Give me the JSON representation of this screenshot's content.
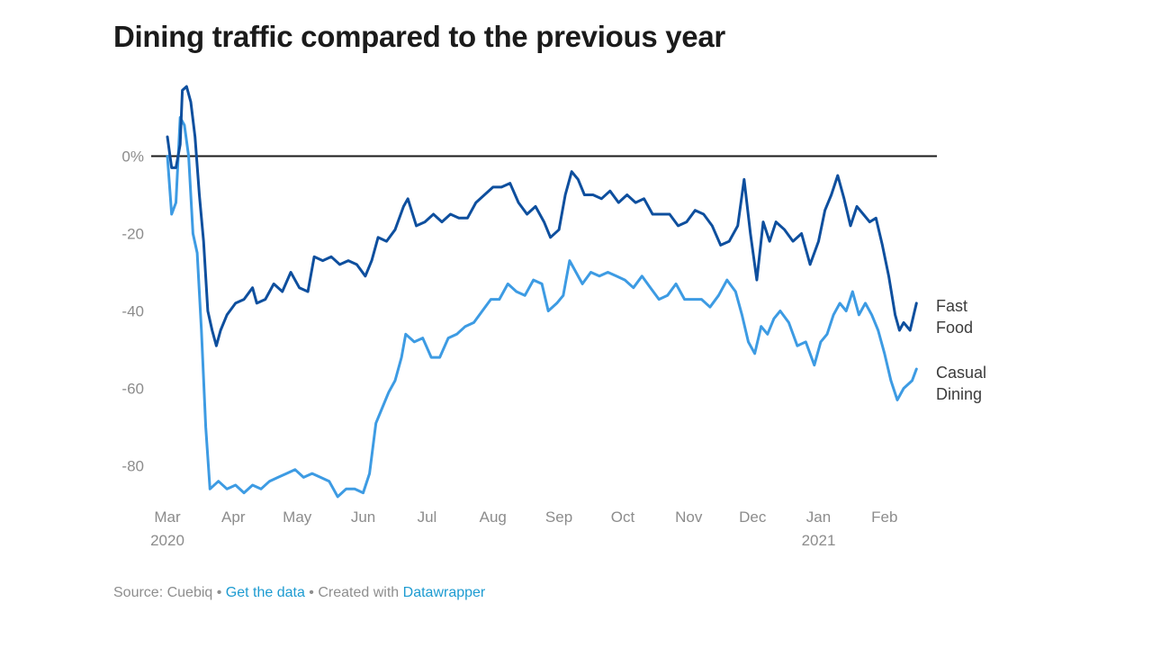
{
  "title": "Dining traffic compared to the previous year",
  "footer": {
    "source": "Source: Cuebiq",
    "separator": " • ",
    "get_data": "Get the data",
    "created_with": "Created with",
    "tool": "Datawrapper"
  },
  "chart_data": {
    "type": "line",
    "title": "Dining traffic compared to the previous year",
    "xlabel": "",
    "ylabel": "",
    "x_start": "2020-03-01",
    "x_end": "2021-02-18",
    "ylim": [
      -89,
      22
    ],
    "y_ticks": [
      0,
      -20,
      -40,
      -60,
      -80
    ],
    "y_tick_labels": [
      "0%",
      "-20",
      "-40",
      "-60",
      "-80"
    ],
    "x_ticks": [
      {
        "date": "2020-03-01",
        "label": "Mar",
        "sub": "2020"
      },
      {
        "date": "2020-04-01",
        "label": "Apr",
        "sub": ""
      },
      {
        "date": "2020-05-01",
        "label": "May",
        "sub": ""
      },
      {
        "date": "2020-06-01",
        "label": "Jun",
        "sub": ""
      },
      {
        "date": "2020-07-01",
        "label": "Jul",
        "sub": ""
      },
      {
        "date": "2020-08-01",
        "label": "Aug",
        "sub": ""
      },
      {
        "date": "2020-09-01",
        "label": "Sep",
        "sub": ""
      },
      {
        "date": "2020-10-01",
        "label": "Oct",
        "sub": ""
      },
      {
        "date": "2020-11-01",
        "label": "Nov",
        "sub": ""
      },
      {
        "date": "2020-12-01",
        "label": "Dec",
        "sub": ""
      },
      {
        "date": "2021-01-01",
        "label": "Jan",
        "sub": "2021"
      },
      {
        "date": "2021-02-01",
        "label": "Feb",
        "sub": ""
      }
    ],
    "grid": false,
    "zero_line": true,
    "legend": "inline-right",
    "series": [
      {
        "name": "Fast Food",
        "label_lines": [
          "Fast",
          "Food"
        ],
        "color": "#0e4f9e",
        "points": [
          [
            "2020-03-01",
            5
          ],
          [
            "2020-03-03",
            -3
          ],
          [
            "2020-03-05",
            -3
          ],
          [
            "2020-03-07",
            3
          ],
          [
            "2020-03-08",
            17
          ],
          [
            "2020-03-10",
            18
          ],
          [
            "2020-03-12",
            14
          ],
          [
            "2020-03-14",
            5
          ],
          [
            "2020-03-16",
            -10
          ],
          [
            "2020-03-18",
            -22
          ],
          [
            "2020-03-20",
            -40
          ],
          [
            "2020-03-22",
            -45
          ],
          [
            "2020-03-24",
            -49
          ],
          [
            "2020-03-26",
            -45
          ],
          [
            "2020-03-29",
            -41
          ],
          [
            "2020-04-02",
            -38
          ],
          [
            "2020-04-06",
            -37
          ],
          [
            "2020-04-10",
            -34
          ],
          [
            "2020-04-12",
            -38
          ],
          [
            "2020-04-16",
            -37
          ],
          [
            "2020-04-20",
            -33
          ],
          [
            "2020-04-24",
            -35
          ],
          [
            "2020-04-28",
            -30
          ],
          [
            "2020-05-02",
            -34
          ],
          [
            "2020-05-06",
            -35
          ],
          [
            "2020-05-09",
            -26
          ],
          [
            "2020-05-13",
            -27
          ],
          [
            "2020-05-17",
            -26
          ],
          [
            "2020-05-21",
            -28
          ],
          [
            "2020-05-25",
            -27
          ],
          [
            "2020-05-29",
            -28
          ],
          [
            "2020-06-02",
            -31
          ],
          [
            "2020-06-05",
            -27
          ],
          [
            "2020-06-08",
            -21
          ],
          [
            "2020-06-12",
            -22
          ],
          [
            "2020-06-16",
            -19
          ],
          [
            "2020-06-20",
            -13
          ],
          [
            "2020-06-22",
            -11
          ],
          [
            "2020-06-26",
            -18
          ],
          [
            "2020-06-30",
            -17
          ],
          [
            "2020-07-04",
            -15
          ],
          [
            "2020-07-08",
            -17
          ],
          [
            "2020-07-12",
            -15
          ],
          [
            "2020-07-16",
            -16
          ],
          [
            "2020-07-20",
            -16
          ],
          [
            "2020-07-24",
            -12
          ],
          [
            "2020-07-28",
            -10
          ],
          [
            "2020-08-01",
            -8
          ],
          [
            "2020-08-05",
            -8
          ],
          [
            "2020-08-09",
            -7
          ],
          [
            "2020-08-13",
            -12
          ],
          [
            "2020-08-17",
            -15
          ],
          [
            "2020-08-21",
            -13
          ],
          [
            "2020-08-25",
            -17
          ],
          [
            "2020-08-28",
            -21
          ],
          [
            "2020-09-01",
            -19
          ],
          [
            "2020-09-04",
            -10
          ],
          [
            "2020-09-07",
            -4
          ],
          [
            "2020-09-10",
            -6
          ],
          [
            "2020-09-13",
            -10
          ],
          [
            "2020-09-17",
            -10
          ],
          [
            "2020-09-21",
            -11
          ],
          [
            "2020-09-25",
            -9
          ],
          [
            "2020-09-29",
            -12
          ],
          [
            "2020-10-03",
            -10
          ],
          [
            "2020-10-07",
            -12
          ],
          [
            "2020-10-11",
            -11
          ],
          [
            "2020-10-15",
            -15
          ],
          [
            "2020-10-19",
            -15
          ],
          [
            "2020-10-23",
            -15
          ],
          [
            "2020-10-27",
            -18
          ],
          [
            "2020-10-31",
            -17
          ],
          [
            "2020-11-04",
            -14
          ],
          [
            "2020-11-08",
            -15
          ],
          [
            "2020-11-12",
            -18
          ],
          [
            "2020-11-16",
            -23
          ],
          [
            "2020-11-20",
            -22
          ],
          [
            "2020-11-24",
            -18
          ],
          [
            "2020-11-27",
            -6
          ],
          [
            "2020-11-30",
            -20
          ],
          [
            "2020-12-03",
            -32
          ],
          [
            "2020-12-06",
            -17
          ],
          [
            "2020-12-09",
            -22
          ],
          [
            "2020-12-12",
            -17
          ],
          [
            "2020-12-16",
            -19
          ],
          [
            "2020-12-20",
            -22
          ],
          [
            "2020-12-24",
            -20
          ],
          [
            "2020-12-28",
            -28
          ],
          [
            "2021-01-01",
            -22
          ],
          [
            "2021-01-04",
            -14
          ],
          [
            "2021-01-07",
            -10
          ],
          [
            "2021-01-10",
            -5
          ],
          [
            "2021-01-13",
            -11
          ],
          [
            "2021-01-16",
            -18
          ],
          [
            "2021-01-19",
            -13
          ],
          [
            "2021-01-22",
            -15
          ],
          [
            "2021-01-25",
            -17
          ],
          [
            "2021-01-28",
            -16
          ],
          [
            "2021-01-31",
            -23
          ],
          [
            "2021-02-03",
            -31
          ],
          [
            "2021-02-06",
            -41
          ],
          [
            "2021-02-08",
            -45
          ],
          [
            "2021-02-10",
            -43
          ],
          [
            "2021-02-13",
            -45
          ],
          [
            "2021-02-16",
            -38
          ]
        ]
      },
      {
        "name": "Casual Dining",
        "label_lines": [
          "Casual",
          "Dining"
        ],
        "color": "#3d9be3",
        "points": [
          [
            "2020-03-01",
            0
          ],
          [
            "2020-03-03",
            -15
          ],
          [
            "2020-03-05",
            -12
          ],
          [
            "2020-03-07",
            10
          ],
          [
            "2020-03-09",
            8
          ],
          [
            "2020-03-11",
            0
          ],
          [
            "2020-03-13",
            -20
          ],
          [
            "2020-03-15",
            -25
          ],
          [
            "2020-03-17",
            -45
          ],
          [
            "2020-03-19",
            -70
          ],
          [
            "2020-03-21",
            -86
          ],
          [
            "2020-03-25",
            -84
          ],
          [
            "2020-03-29",
            -86
          ],
          [
            "2020-04-02",
            -85
          ],
          [
            "2020-04-06",
            -87
          ],
          [
            "2020-04-10",
            -85
          ],
          [
            "2020-04-14",
            -86
          ],
          [
            "2020-04-18",
            -84
          ],
          [
            "2020-04-22",
            -83
          ],
          [
            "2020-04-26",
            -82
          ],
          [
            "2020-04-30",
            -81
          ],
          [
            "2020-05-04",
            -83
          ],
          [
            "2020-05-08",
            -82
          ],
          [
            "2020-05-12",
            -83
          ],
          [
            "2020-05-16",
            -84
          ],
          [
            "2020-05-20",
            -88
          ],
          [
            "2020-05-24",
            -86
          ],
          [
            "2020-05-28",
            -86
          ],
          [
            "2020-06-01",
            -87
          ],
          [
            "2020-06-04",
            -82
          ],
          [
            "2020-06-07",
            -69
          ],
          [
            "2020-06-10",
            -65
          ],
          [
            "2020-06-13",
            -61
          ],
          [
            "2020-06-16",
            -58
          ],
          [
            "2020-06-19",
            -52
          ],
          [
            "2020-06-21",
            -46
          ],
          [
            "2020-06-25",
            -48
          ],
          [
            "2020-06-29",
            -47
          ],
          [
            "2020-07-03",
            -52
          ],
          [
            "2020-07-07",
            -52
          ],
          [
            "2020-07-11",
            -47
          ],
          [
            "2020-07-15",
            -46
          ],
          [
            "2020-07-19",
            -44
          ],
          [
            "2020-07-23",
            -43
          ],
          [
            "2020-07-27",
            -40
          ],
          [
            "2020-07-31",
            -37
          ],
          [
            "2020-08-04",
            -37
          ],
          [
            "2020-08-08",
            -33
          ],
          [
            "2020-08-12",
            -35
          ],
          [
            "2020-08-16",
            -36
          ],
          [
            "2020-08-20",
            -32
          ],
          [
            "2020-08-24",
            -33
          ],
          [
            "2020-08-27",
            -40
          ],
          [
            "2020-08-31",
            -38
          ],
          [
            "2020-09-03",
            -36
          ],
          [
            "2020-09-06",
            -27
          ],
          [
            "2020-09-09",
            -30
          ],
          [
            "2020-09-12",
            -33
          ],
          [
            "2020-09-16",
            -30
          ],
          [
            "2020-09-20",
            -31
          ],
          [
            "2020-09-24",
            -30
          ],
          [
            "2020-09-28",
            -31
          ],
          [
            "2020-10-02",
            -32
          ],
          [
            "2020-10-06",
            -34
          ],
          [
            "2020-10-10",
            -31
          ],
          [
            "2020-10-14",
            -34
          ],
          [
            "2020-10-18",
            -37
          ],
          [
            "2020-10-22",
            -36
          ],
          [
            "2020-10-26",
            -33
          ],
          [
            "2020-10-30",
            -37
          ],
          [
            "2020-11-03",
            -37
          ],
          [
            "2020-11-07",
            -37
          ],
          [
            "2020-11-11",
            -39
          ],
          [
            "2020-11-15",
            -36
          ],
          [
            "2020-11-19",
            -32
          ],
          [
            "2020-11-23",
            -35
          ],
          [
            "2020-11-26",
            -41
          ],
          [
            "2020-11-29",
            -48
          ],
          [
            "2020-12-02",
            -51
          ],
          [
            "2020-12-05",
            -44
          ],
          [
            "2020-12-08",
            -46
          ],
          [
            "2020-12-11",
            -42
          ],
          [
            "2020-12-14",
            -40
          ],
          [
            "2020-12-18",
            -43
          ],
          [
            "2020-12-22",
            -49
          ],
          [
            "2020-12-26",
            -48
          ],
          [
            "2020-12-30",
            -54
          ],
          [
            "2021-01-02",
            -48
          ],
          [
            "2021-01-05",
            -46
          ],
          [
            "2021-01-08",
            -41
          ],
          [
            "2021-01-11",
            -38
          ],
          [
            "2021-01-14",
            -40
          ],
          [
            "2021-01-17",
            -35
          ],
          [
            "2021-01-20",
            -41
          ],
          [
            "2021-01-23",
            -38
          ],
          [
            "2021-01-26",
            -41
          ],
          [
            "2021-01-29",
            -45
          ],
          [
            "2021-02-01",
            -51
          ],
          [
            "2021-02-04",
            -58
          ],
          [
            "2021-02-07",
            -63
          ],
          [
            "2021-02-10",
            -60
          ],
          [
            "2021-02-14",
            -58
          ],
          [
            "2021-02-16",
            -55
          ]
        ]
      }
    ]
  }
}
